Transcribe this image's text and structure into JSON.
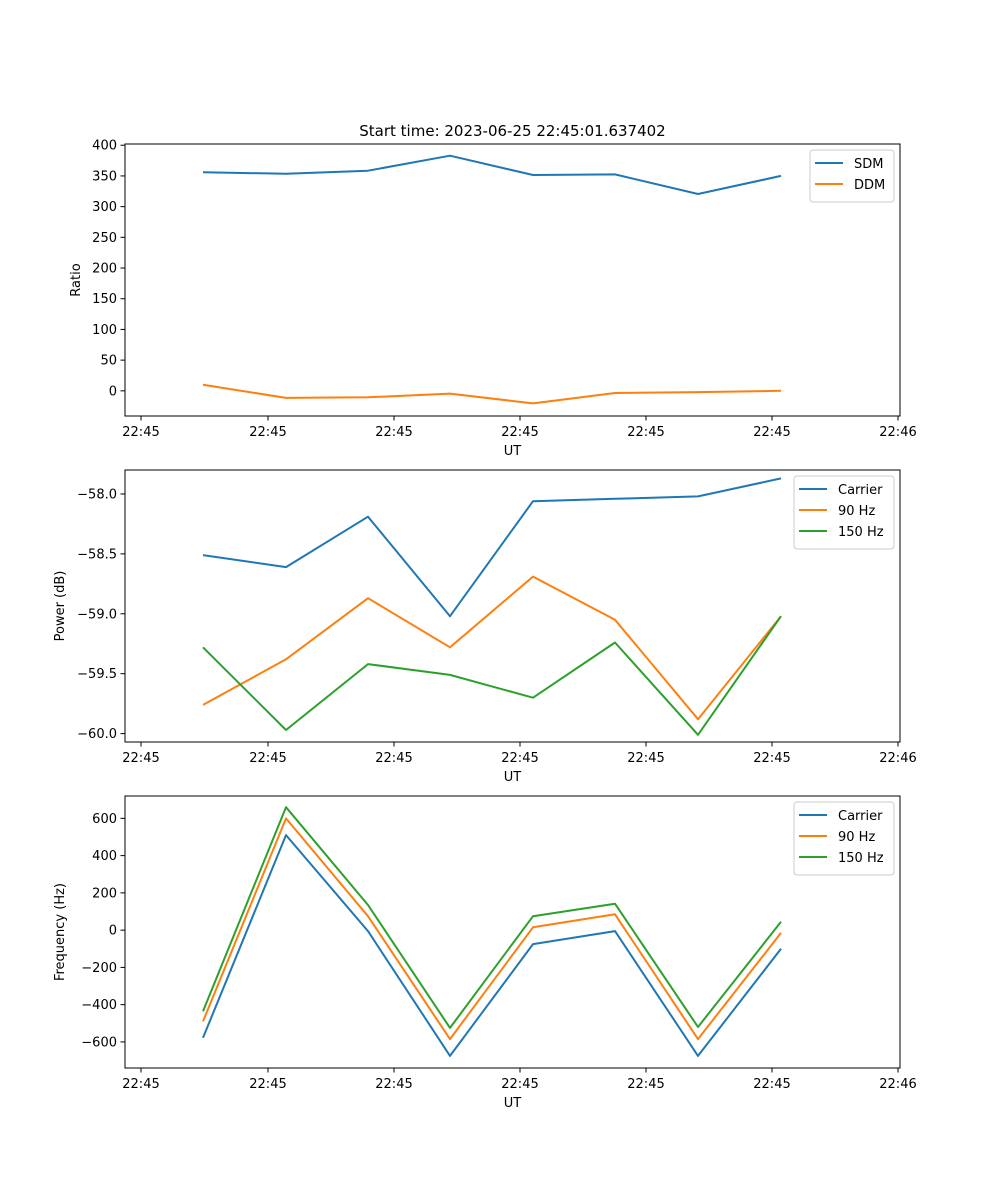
{
  "title": "Start time: 2023-06-25 22:45:01.637402",
  "colors": {
    "blue": "#1f77b4",
    "orange": "#ff7f0e",
    "green": "#2ca02c"
  },
  "chart_data": [
    {
      "type": "line",
      "xlabel": "UT",
      "ylabel": "Ratio",
      "xtick_labels": [
        "22:45",
        "22:45",
        "22:45",
        "22:45",
        "22:45",
        "22:45",
        "22:46"
      ],
      "yticks": [
        0,
        50,
        100,
        150,
        200,
        250,
        300,
        350,
        400
      ],
      "ylim": [
        -41,
        402
      ],
      "legend_position": "top-right",
      "series": [
        {
          "name": "SDM",
          "color": "#1f77b4",
          "values": [
            356,
            353.5,
            358.5,
            383,
            351.5,
            352.5,
            320.5,
            350
          ]
        },
        {
          "name": "DDM",
          "color": "#ff7f0e",
          "values": [
            10,
            -11.5,
            -10.5,
            -4.5,
            -20.5,
            -3.5,
            -2,
            0
          ]
        }
      ]
    },
    {
      "type": "line",
      "xlabel": "UT",
      "ylabel": "Power (dB)",
      "xtick_labels": [
        "22:45",
        "22:45",
        "22:45",
        "22:45",
        "22:45",
        "22:45",
        "22:46"
      ],
      "yticks": [
        "−60.0",
        "−59.5",
        "−59.0",
        "−58.5",
        "−58.0"
      ],
      "ytick_values": [
        -60.0,
        -59.5,
        -59.0,
        -58.5,
        -58.0
      ],
      "ylim": [
        -60.07,
        -57.8
      ],
      "legend_position": "top-right",
      "series": [
        {
          "name": "Carrier",
          "color": "#1f77b4",
          "values": [
            -58.51,
            -58.61,
            -58.19,
            -59.02,
            -58.06,
            -58.04,
            -58.02,
            -57.87
          ]
        },
        {
          "name": "90 Hz",
          "color": "#ff7f0e",
          "values": [
            -59.76,
            -59.38,
            -58.87,
            -59.28,
            -58.69,
            -59.05,
            -59.88,
            -59.02
          ]
        },
        {
          "name": "150 Hz",
          "color": "#2ca02c",
          "values": [
            -59.28,
            -59.97,
            -59.42,
            -59.51,
            -59.7,
            -59.24,
            -60.01,
            -59.02
          ]
        }
      ]
    },
    {
      "type": "line",
      "xlabel": "UT",
      "ylabel": "Frequency (Hz)",
      "xtick_labels": [
        "22:45",
        "22:45",
        "22:45",
        "22:45",
        "22:45",
        "22:45",
        "22:46"
      ],
      "yticks": [
        "−600",
        "−400",
        "−200",
        "0",
        "200",
        "400",
        "600"
      ],
      "ytick_values": [
        -600,
        -400,
        -200,
        0,
        200,
        400,
        600
      ],
      "ylim": [
        -740,
        720
      ],
      "legend_position": "top-right",
      "series": [
        {
          "name": "Carrier",
          "color": "#1f77b4",
          "values": [
            -578,
            510,
            -5,
            -675,
            -75,
            -5,
            -675,
            -100
          ]
        },
        {
          "name": "90 Hz",
          "color": "#ff7f0e",
          "values": [
            -490,
            600,
            75,
            -585,
            15,
            85,
            -585,
            -15
          ]
        },
        {
          "name": "150 Hz",
          "color": "#2ca02c",
          "values": [
            -435,
            660,
            135,
            -525,
            75,
            142,
            -520,
            45
          ]
        }
      ]
    }
  ]
}
